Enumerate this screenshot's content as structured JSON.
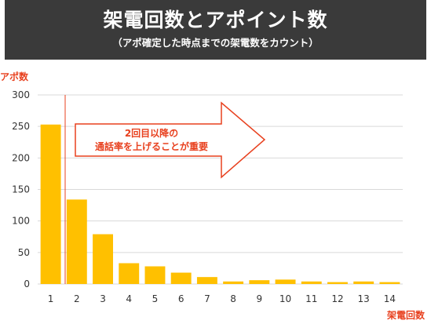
{
  "header": {
    "title": "架電回数とアポイント数",
    "subtitle": "（アポ確定した時点までの架電数をカウント）"
  },
  "callout": {
    "line1": "2回目以降の",
    "line2": "通話率を上げることが重要"
  },
  "colors": {
    "bar": "#ffc000",
    "accent": "#e8411f",
    "header_bg": "#3a3a3a"
  },
  "chart_data": {
    "type": "bar",
    "ylabel": "アポ数",
    "xlabel": "架電回数",
    "categories": [
      "1",
      "2",
      "3",
      "4",
      "5",
      "6",
      "7",
      "8",
      "9",
      "10",
      "11",
      "12",
      "13",
      "14"
    ],
    "values": [
      253,
      134,
      79,
      33,
      28,
      18,
      11,
      4,
      6,
      7,
      4,
      3,
      4,
      3
    ],
    "ylim": [
      0,
      300
    ],
    "yticks": [
      0,
      50,
      100,
      150,
      200,
      250,
      300
    ],
    "grid": true
  }
}
